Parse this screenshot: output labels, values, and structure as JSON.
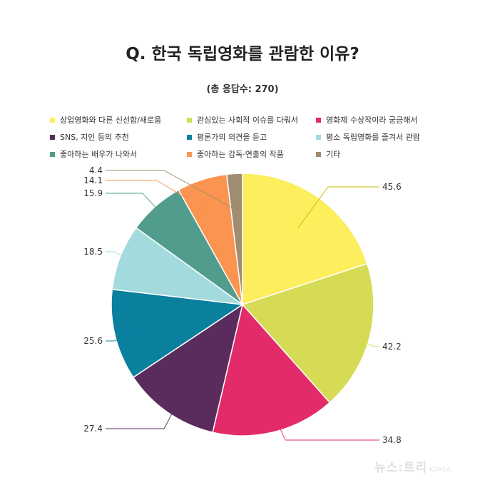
{
  "title": "Q. 한국 독립영화를 관람한 이유?",
  "subtitle": "(총 응답수: 270)",
  "watermark": {
    "main": "뉴스:트리",
    "sub": "KOREA"
  },
  "chart_data": {
    "type": "pie",
    "legend_position": "top",
    "series": [
      {
        "name": "상업영화와 다른 신선함/새로움",
        "value": 45.6,
        "color": "#fcee5c"
      },
      {
        "name": "관심있는 사회적 이슈를 다뤄서",
        "value": 42.2,
        "color": "#d6db55"
      },
      {
        "name": "영화제 수상작이라 궁금해서",
        "value": 34.8,
        "color": "#e32b69"
      },
      {
        "name": "SNS, 지인 등의 추천",
        "value": 27.4,
        "color": "#5a2c5e"
      },
      {
        "name": "평론가의 의견을 듣고",
        "value": 25.6,
        "color": "#0a7f9e"
      },
      {
        "name": "평소 독립영화를 즐겨서 관람",
        "value": 18.5,
        "color": "#a3dadd"
      },
      {
        "name": "좋아하는 배우가 나와서",
        "value": 15.9,
        "color": "#529c8d"
      },
      {
        "name": "좋아하는 감독·연출의 작품",
        "value": 14.1,
        "color": "#fb9450"
      },
      {
        "name": "기타",
        "value": 4.4,
        "color": "#a08c70"
      }
    ]
  }
}
